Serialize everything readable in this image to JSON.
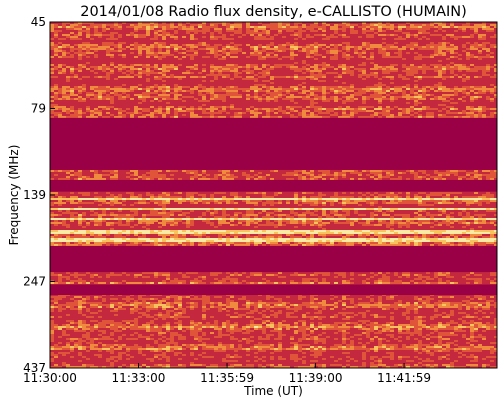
{
  "chart_data": {
    "type": "heatmap",
    "title": "2014/01/08  Radio flux density, e-CALLISTO (HUMAIN)",
    "xlabel": "Time (UT)",
    "ylabel": "Frequency (MHz)",
    "x_ticks": [
      "11:30:00",
      "11:33:00",
      "11:35:59",
      "11:39:00",
      "11:41:59"
    ],
    "y_ticks": [
      "45",
      "79",
      "139",
      "247",
      "437"
    ],
    "ylim": [
      437,
      45
    ],
    "xlim_start": "11:30:00",
    "colormap": [
      "#9a0045",
      "#c4283e",
      "#e0553a",
      "#f08a3f",
      "#f8c25e",
      "#fbeaa6"
    ],
    "saturated_color": "#9a0045",
    "saturated_bands_mhz": [
      [
        84,
        118
      ],
      [
        126,
        136
      ],
      [
        195,
        232
      ],
      [
        252,
        270
      ]
    ],
    "bright_bands_mhz": [
      [
        141,
        143
      ],
      [
        151,
        153
      ],
      [
        163,
        165
      ],
      [
        176,
        180
      ],
      [
        186,
        190
      ]
    ],
    "grid": false,
    "legend": "none"
  }
}
